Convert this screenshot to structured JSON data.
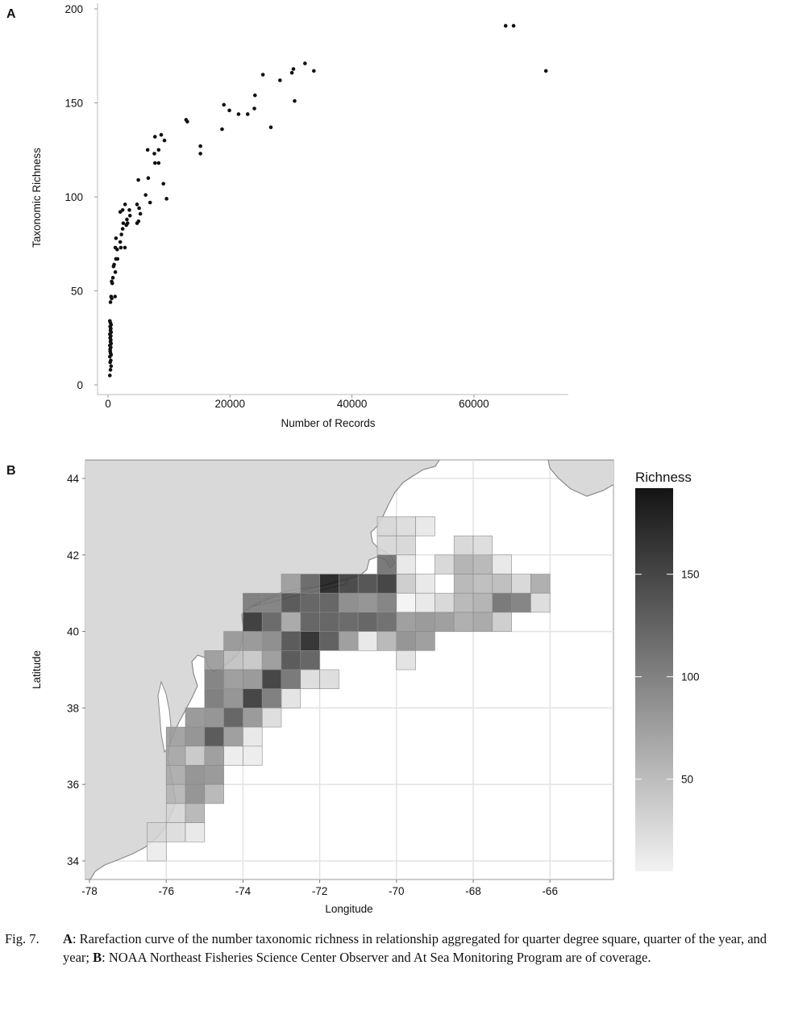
{
  "panel_labels": {
    "a": "A",
    "b": "B"
  },
  "chart_data": [
    {
      "type": "scatter",
      "panel": "A",
      "title": "",
      "xlabel": "Number of Records",
      "ylabel": "Taxonomic Richness",
      "xlim": [
        -3500,
        75000
      ],
      "ylim": [
        -5,
        205
      ],
      "xticks": [
        0,
        20000,
        40000,
        60000
      ],
      "xtick_labels": [
        "0",
        "20000",
        "40000",
        "60000"
      ],
      "yticks": [
        0,
        50,
        100,
        150,
        200
      ],
      "ytick_labels": [
        "0",
        "50",
        "100",
        "150",
        "200"
      ],
      "grid": false,
      "points": [
        [
          300,
          5
        ],
        [
          400,
          8
        ],
        [
          500,
          10
        ],
        [
          350,
          12
        ],
        [
          450,
          13
        ],
        [
          300,
          15
        ],
        [
          500,
          16
        ],
        [
          400,
          17
        ],
        [
          350,
          18
        ],
        [
          350,
          19
        ],
        [
          450,
          20
        ],
        [
          300,
          21
        ],
        [
          500,
          22
        ],
        [
          400,
          23
        ],
        [
          450,
          24
        ],
        [
          350,
          25
        ],
        [
          450,
          26
        ],
        [
          300,
          27
        ],
        [
          500,
          28
        ],
        [
          400,
          29
        ],
        [
          450,
          30
        ],
        [
          350,
          31
        ],
        [
          500,
          32
        ],
        [
          400,
          33
        ],
        [
          300,
          34
        ],
        [
          400,
          44
        ],
        [
          600,
          46
        ],
        [
          1150,
          47
        ],
        [
          500,
          47
        ],
        [
          600,
          55
        ],
        [
          700,
          54
        ],
        [
          800,
          57
        ],
        [
          1200,
          60
        ],
        [
          900,
          63
        ],
        [
          1000,
          64
        ],
        [
          1560,
          67
        ],
        [
          1300,
          67
        ],
        [
          1200,
          73
        ],
        [
          2100,
          73
        ],
        [
          1500,
          72
        ],
        [
          1300,
          78
        ],
        [
          2000,
          76
        ],
        [
          2200,
          80
        ],
        [
          2770,
          73
        ],
        [
          2400,
          83
        ],
        [
          3000,
          85
        ],
        [
          3200,
          86
        ],
        [
          2500,
          86
        ],
        [
          3100,
          88
        ],
        [
          3600,
          90
        ],
        [
          2000,
          92
        ],
        [
          2400,
          93
        ],
        [
          3500,
          93
        ],
        [
          2800,
          96
        ],
        [
          4760,
          86
        ],
        [
          5000,
          87
        ],
        [
          5300,
          91
        ],
        [
          4760,
          96
        ],
        [
          5100,
          94
        ],
        [
          6170,
          101
        ],
        [
          6900,
          97
        ],
        [
          6600,
          110
        ],
        [
          4970,
          109
        ],
        [
          6500,
          125
        ],
        [
          7700,
          132
        ],
        [
          7600,
          123
        ],
        [
          8300,
          125
        ],
        [
          7700,
          118
        ],
        [
          8300,
          118
        ],
        [
          8720,
          133
        ],
        [
          9250,
          130
        ],
        [
          9080,
          107
        ],
        [
          9600,
          99
        ],
        [
          12800,
          141
        ],
        [
          13000,
          140
        ],
        [
          15150,
          127
        ],
        [
          15150,
          123
        ],
        [
          18700,
          136
        ],
        [
          19000,
          149
        ],
        [
          19900,
          146
        ],
        [
          21400,
          144
        ],
        [
          22900,
          144
        ],
        [
          24000,
          147
        ],
        [
          24100,
          154
        ],
        [
          25400,
          165
        ],
        [
          26700,
          137
        ],
        [
          28200,
          162
        ],
        [
          30150,
          166
        ],
        [
          30400,
          168
        ],
        [
          30600,
          151
        ],
        [
          32300,
          171
        ],
        [
          33750,
          167
        ],
        [
          65200,
          191
        ],
        [
          66500,
          191
        ],
        [
          71800,
          167
        ]
      ]
    },
    {
      "type": "heatmap",
      "panel": "B",
      "title": "",
      "xlabel": "Longitude",
      "ylabel": "Latitude",
      "xlim": [
        -78.1,
        -64.4
      ],
      "ylim": [
        33.7,
        44.5
      ],
      "cell_size_deg": 0.5,
      "xticks": [
        -78,
        -76,
        -74,
        -72,
        -70,
        -68,
        -66
      ],
      "xtick_labels": [
        "-78",
        "-76",
        "-74",
        "-72",
        "-70",
        "-68",
        "-66"
      ],
      "yticks": [
        34,
        36,
        38,
        40,
        42,
        44
      ],
      "ytick_labels": [
        "34",
        "36",
        "38",
        "40",
        "42",
        "44"
      ],
      "grid": true,
      "legend": {
        "title": "Richness",
        "placement": "right",
        "range": [
          5,
          192
        ],
        "ticks": [
          50,
          100,
          150
        ],
        "tick_labels": [
          "50",
          "100",
          "150"
        ],
        "low_color": "#f2f2f2",
        "high_color": "#141414"
      },
      "land_color": "#d9d9d9",
      "cells": [
        [
          -70.5,
          42.5,
          30
        ],
        [
          -70,
          42.5,
          25
        ],
        [
          -69.5,
          42.5,
          15
        ],
        [
          -70.5,
          42,
          30
        ],
        [
          -70,
          42,
          30
        ],
        [
          -68.5,
          42,
          30
        ],
        [
          -68,
          42,
          25
        ],
        [
          -70.5,
          41.5,
          120
        ],
        [
          -70,
          41.5,
          15
        ],
        [
          -69,
          41.5,
          30
        ],
        [
          -68.5,
          41.5,
          65
        ],
        [
          -68,
          41.5,
          60
        ],
        [
          -67.5,
          41.5,
          15
        ],
        [
          -73,
          41,
          80
        ],
        [
          -72.5,
          41,
          130
        ],
        [
          -72,
          41,
          190
        ],
        [
          -71.5,
          41,
          165
        ],
        [
          -71,
          41,
          155
        ],
        [
          -70.5,
          41,
          170
        ],
        [
          -70,
          41,
          40
        ],
        [
          -69.5,
          41,
          15
        ],
        [
          -68.5,
          41,
          60
        ],
        [
          -68,
          41,
          55
        ],
        [
          -67.5,
          41,
          55
        ],
        [
          -67,
          41,
          30
        ],
        [
          -66.5,
          41,
          70
        ],
        [
          -74,
          40.5,
          110
        ],
        [
          -73.5,
          40.5,
          110
        ],
        [
          -73,
          40.5,
          150
        ],
        [
          -72.5,
          40.5,
          140
        ],
        [
          -72,
          40.5,
          140
        ],
        [
          -71.5,
          40.5,
          100
        ],
        [
          -71,
          40.5,
          95
        ],
        [
          -70.5,
          40.5,
          110
        ],
        [
          -70,
          40.5,
          5
        ],
        [
          -69.5,
          40.5,
          15
        ],
        [
          -69,
          40.5,
          30
        ],
        [
          -68.5,
          40.5,
          60
        ],
        [
          -68,
          40.5,
          65
        ],
        [
          -67.5,
          40.5,
          120
        ],
        [
          -67,
          40.5,
          110
        ],
        [
          -66.5,
          40.5,
          25
        ],
        [
          -74,
          40,
          175
        ],
        [
          -73.5,
          40,
          135
        ],
        [
          -73,
          40,
          75
        ],
        [
          -72.5,
          40,
          140
        ],
        [
          -72,
          40,
          140
        ],
        [
          -71.5,
          40,
          135
        ],
        [
          -71,
          40,
          140
        ],
        [
          -70.5,
          40,
          130
        ],
        [
          -70,
          40,
          85
        ],
        [
          -69.5,
          40,
          90
        ],
        [
          -69,
          40,
          85
        ],
        [
          -68.5,
          40,
          70
        ],
        [
          -68,
          40,
          75
        ],
        [
          -67.5,
          40,
          40
        ],
        [
          -74.5,
          39.5,
          85
        ],
        [
          -74,
          39.5,
          90
        ],
        [
          -73.5,
          39.5,
          100
        ],
        [
          -73,
          39.5,
          150
        ],
        [
          -72.5,
          39.5,
          185
        ],
        [
          -72,
          39.5,
          145
        ],
        [
          -71.5,
          39.5,
          85
        ],
        [
          -71,
          39.5,
          15
        ],
        [
          -70.5,
          39.5,
          60
        ],
        [
          -70,
          39.5,
          95
        ],
        [
          -69.5,
          39.5,
          85
        ],
        [
          -75,
          39,
          80
        ],
        [
          -74.5,
          39,
          50
        ],
        [
          -74,
          39,
          45
        ],
        [
          -73.5,
          39,
          85
        ],
        [
          -73,
          39,
          150
        ],
        [
          -72.5,
          39,
          140
        ],
        [
          -70,
          39,
          20
        ],
        [
          -75,
          38.5,
          110
        ],
        [
          -74.5,
          38.5,
          85
        ],
        [
          -74,
          38.5,
          90
        ],
        [
          -73.5,
          38.5,
          170
        ],
        [
          -73,
          38.5,
          120
        ],
        [
          -72.5,
          38.5,
          25
        ],
        [
          -72,
          38.5,
          25
        ],
        [
          -75,
          38,
          115
        ],
        [
          -74.5,
          38,
          95
        ],
        [
          -74,
          38,
          170
        ],
        [
          -73.5,
          38,
          115
        ],
        [
          -73,
          38,
          20
        ],
        [
          -75.5,
          37.5,
          90
        ],
        [
          -75,
          37.5,
          95
        ],
        [
          -74.5,
          37.5,
          140
        ],
        [
          -74,
          37.5,
          90
        ],
        [
          -73.5,
          37.5,
          25
        ],
        [
          -76,
          37,
          80
        ],
        [
          -75.5,
          37,
          95
        ],
        [
          -75,
          37,
          150
        ],
        [
          -74.5,
          37,
          85
        ],
        [
          -74,
          37,
          15
        ],
        [
          -76,
          36.5,
          75
        ],
        [
          -75.5,
          36.5,
          45
        ],
        [
          -75,
          36.5,
          85
        ],
        [
          -74.5,
          36.5,
          12
        ],
        [
          -74,
          36.5,
          12
        ],
        [
          -76,
          36,
          70
        ],
        [
          -75.5,
          36,
          95
        ],
        [
          -75,
          36,
          90
        ],
        [
          -76,
          35.5,
          60
        ],
        [
          -75.5,
          35.5,
          95
        ],
        [
          -75,
          35.5,
          60
        ],
        [
          -76,
          35,
          30
        ],
        [
          -75.5,
          35,
          60
        ],
        [
          -76.5,
          34.5,
          30
        ],
        [
          -76,
          34.5,
          25
        ],
        [
          -75.5,
          34.5,
          15
        ],
        [
          -76.5,
          34,
          12
        ]
      ]
    }
  ],
  "caption": {
    "number": "Fig. 7.",
    "a_label": "A",
    "a_text": ": Rarefaction curve of the number taxonomic richness in relationship aggregated for quarter degree square, quarter of the year, and year; ",
    "b_label": "B",
    "b_text": ": NOAA Northeast Fisheries Science Center Observer and At Sea Monitoring Program are of coverage."
  }
}
